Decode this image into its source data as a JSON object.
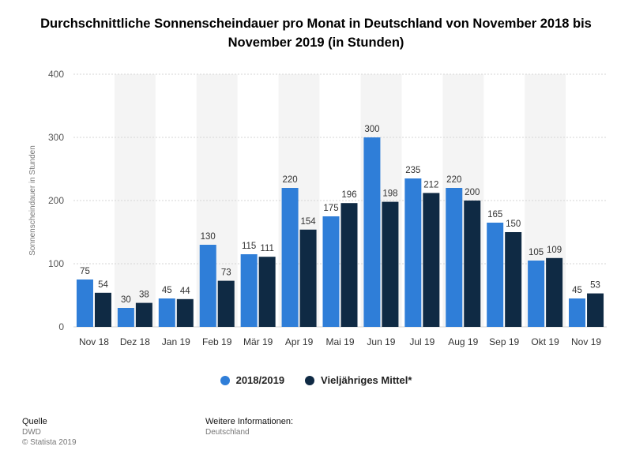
{
  "colors": {
    "series1": "#2f7ed8",
    "series2": "#0f2a44",
    "band": "#f4f4f4",
    "grid": "#d6d6d6"
  },
  "footer": {
    "source_label": "Quelle",
    "source_value": "DWD",
    "copyright": "© Statista 2019",
    "info_label": "Weitere Informationen:",
    "info_value": "Deutschland"
  },
  "chart_data": {
    "type": "bar",
    "title": "Durchschnittliche Sonnenscheindauer pro Monat in Deutschland von November 2018 bis November 2019 (in Stunden)",
    "ylabel": "Sonnenscheindauer in Stunden",
    "ylim": [
      0,
      400
    ],
    "yticks": [
      0,
      100,
      200,
      300,
      400
    ],
    "grid": true,
    "legend_position": "bottom",
    "categories": [
      "Nov 18",
      "Dez 18",
      "Jan 19",
      "Feb 19",
      "Mär 19",
      "Apr 19",
      "Mai 19",
      "Jun 19",
      "Jul 19",
      "Aug 19",
      "Sep 19",
      "Okt 19",
      "Nov 19"
    ],
    "series": [
      {
        "name": "2018/2019",
        "values": [
          75,
          30,
          45,
          130,
          115,
          220,
          175,
          300,
          235,
          220,
          165,
          105,
          45
        ]
      },
      {
        "name": "Vieljähriges Mittel*",
        "values": [
          54,
          38,
          44,
          73,
          111,
          154,
          196,
          198,
          212,
          200,
          150,
          109,
          53
        ]
      }
    ]
  }
}
